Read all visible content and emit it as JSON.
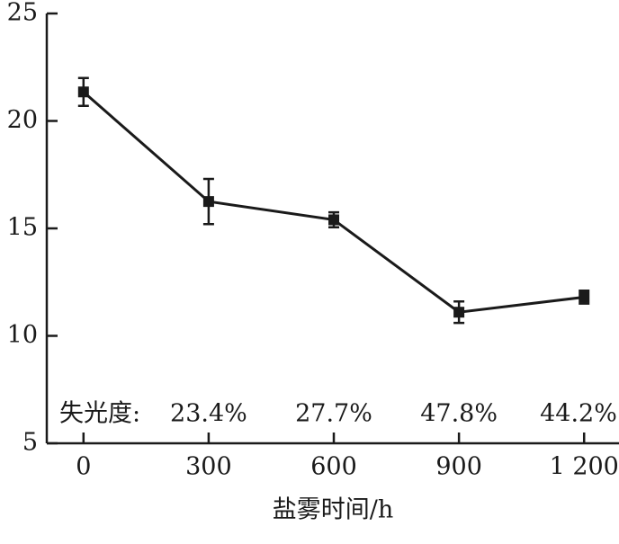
{
  "chart_data": {
    "type": "line",
    "x_label": "盐雾时间/h",
    "x": [
      0,
      300,
      600,
      900,
      1200
    ],
    "series": [
      {
        "color": "#1a1a1a",
        "values": [
          21.35,
          16.25,
          15.4,
          11.1,
          11.8
        ],
        "errors": [
          0.65,
          1.05,
          0.35,
          0.5,
          0.3
        ]
      }
    ],
    "xlim": [
      -88,
      1275
    ],
    "xticks": [
      0,
      300,
      600,
      900,
      {
        "value": 1200,
        "label": "1 200"
      }
    ],
    "ylim": [
      5,
      25
    ],
    "yticks": [
      5,
      10,
      15,
      20,
      25
    ],
    "gloss_loss": {
      "label": "失光度:",
      "x": [
        300,
        600,
        900,
        1200
      ],
      "values": [
        23.4,
        27.7,
        47.8,
        44.2
      ],
      "value_labels": [
        "23.4%",
        "27.7%",
        "47.8%",
        "44.2%"
      ]
    }
  }
}
